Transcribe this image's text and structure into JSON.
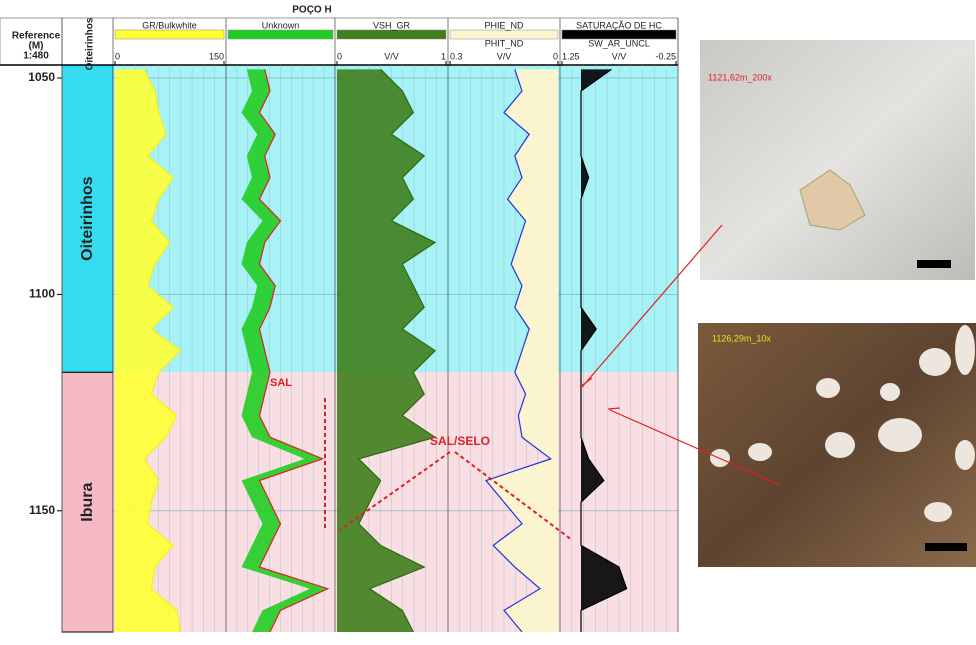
{
  "chart_data": {
    "type": "well-log",
    "title": "POÇO H",
    "reference": [
      "Reference",
      "(M)",
      "1:480"
    ],
    "zone_header": "Oiteirinhos",
    "x": [
      1048,
      1053,
      1058,
      1063,
      1068,
      1073,
      1078,
      1083,
      1088,
      1093,
      1098,
      1103,
      1108,
      1113,
      1118,
      1123,
      1128,
      1133,
      1138,
      1143,
      1148,
      1153,
      1158,
      1163,
      1168,
      1173,
      1178
    ],
    "ylim": [
      1047,
      1178
    ],
    "yticks": [
      1050,
      1100,
      1150
    ],
    "zones": [
      {
        "name": "Oiteirinhos",
        "top": 1047,
        "base": 1118,
        "color": "#35dcef",
        "track_color": "#a6f2f7"
      },
      {
        "name": "Ibura",
        "top": 1118,
        "base": 1178,
        "color": "#f6b9c6",
        "track_color": "#f9dfe4"
      }
    ],
    "tracks": [
      {
        "name": "GR/Bulkwhite",
        "color": "#f2f01e",
        "fill": "#ffff33",
        "xlim": [
          0,
          150
        ],
        "xticks": [
          0,
          150
        ],
        "values": [
          40,
          55,
          60,
          70,
          45,
          80,
          60,
          50,
          75,
          55,
          45,
          80,
          50,
          90,
          60,
          50,
          85,
          70,
          40,
          60,
          50,
          45,
          80,
          55,
          50,
          85,
          90
        ]
      },
      {
        "name": "Unknown",
        "color": "#dd2222",
        "fill": "#22cc22",
        "xlim": [
          0,
          1
        ],
        "values": [
          0.35,
          0.4,
          0.3,
          0.45,
          0.35,
          0.4,
          0.3,
          0.5,
          0.35,
          0.3,
          0.45,
          0.4,
          0.3,
          0.35,
          0.4,
          0.35,
          0.3,
          0.4,
          0.9,
          0.3,
          0.4,
          0.5,
          0.4,
          0.3,
          0.95,
          0.5,
          0.4
        ]
      },
      {
        "name": "VSH_GR",
        "unit": "V/V",
        "color": "#2f6a12",
        "fill": "#3f7f1c",
        "xlim": [
          0,
          1
        ],
        "xticks": [
          0,
          1
        ],
        "values": [
          0.4,
          0.6,
          0.7,
          0.5,
          0.8,
          0.6,
          0.7,
          0.5,
          0.9,
          0.6,
          0.7,
          0.8,
          0.6,
          0.9,
          0.7,
          0.8,
          0.6,
          0.9,
          0.2,
          0.4,
          0.3,
          0.2,
          0.4,
          0.8,
          0.3,
          0.6,
          0.7
        ]
      },
      {
        "name": "PHIE_ND",
        "name2": "PHIT_ND",
        "unit": "V/V",
        "color": "#2233dd",
        "fill": "#fbf5cf",
        "xlim": [
          0.3,
          0
        ],
        "xticks": [
          0.3,
          0
        ],
        "values": [
          0.12,
          0.1,
          0.15,
          0.08,
          0.12,
          0.1,
          0.14,
          0.09,
          0.11,
          0.13,
          0.1,
          0.12,
          0.08,
          0.1,
          0.12,
          0.09,
          0.11,
          0.1,
          0.02,
          0.2,
          0.15,
          0.1,
          0.18,
          0.12,
          0.05,
          0.15,
          0.1
        ]
      },
      {
        "name": "SATURAÇÃO DE HC",
        "name2": "SW_AR_UNCL",
        "unit": "V/V",
        "color": "#000000",
        "fill": "#000000",
        "xlim": [
          1.25,
          -0.25
        ],
        "xticks": [
          1.25,
          -0.25
        ],
        "values": [
          0.6,
          1,
          1,
          1,
          1,
          0.9,
          1,
          1,
          1,
          1,
          1,
          1,
          0.8,
          1,
          1,
          1,
          1,
          1,
          0.9,
          0.7,
          1,
          1,
          1,
          0.5,
          0.4,
          1,
          1
        ]
      }
    ],
    "annotations": [
      "SAL",
      "SAL/SELO"
    ],
    "photos": [
      "1121,62m_200x",
      "1126,29m_10x"
    ]
  }
}
